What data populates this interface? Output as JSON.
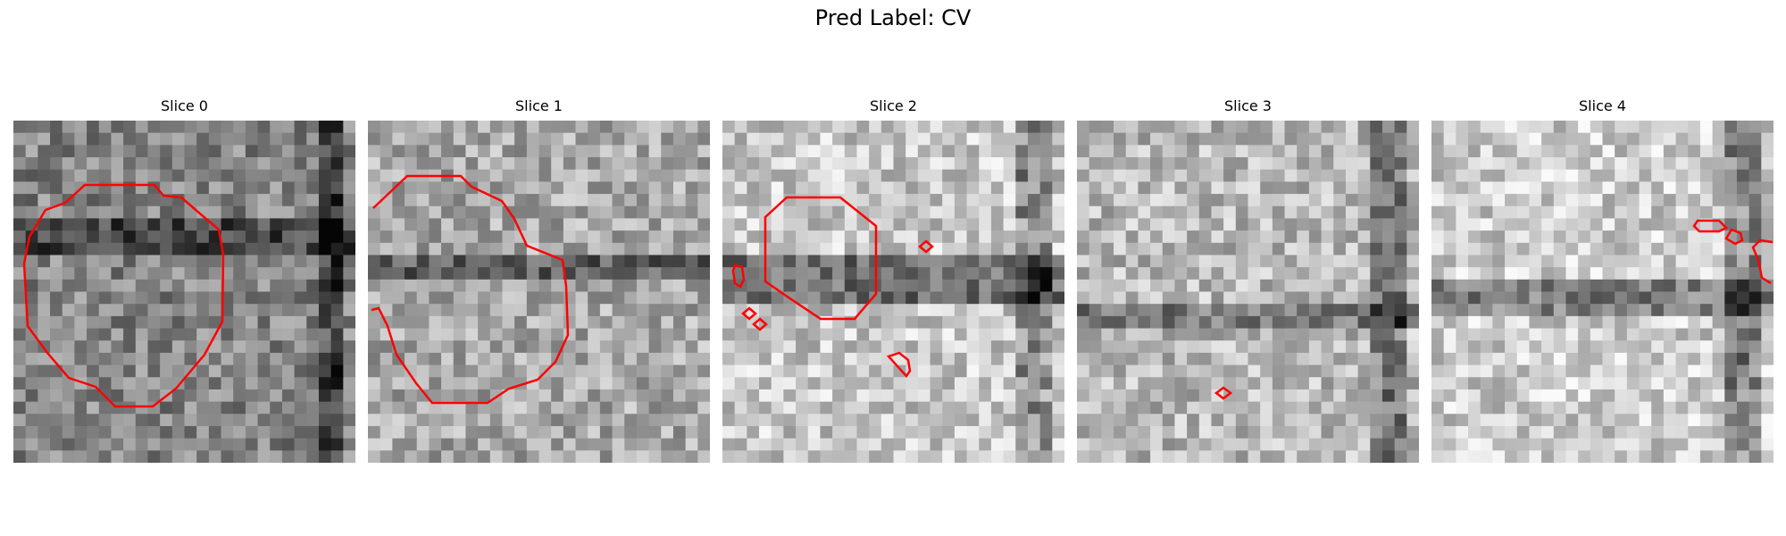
{
  "figure": {
    "title": "Pred Label: CV",
    "contour_color": "#ff0000",
    "slices": [
      {
        "label": "Slice 0"
      },
      {
        "label": "Slice 1"
      },
      {
        "label": "Slice 2"
      },
      {
        "label": "Slice 3"
      },
      {
        "label": "Slice 4"
      }
    ]
  }
}
